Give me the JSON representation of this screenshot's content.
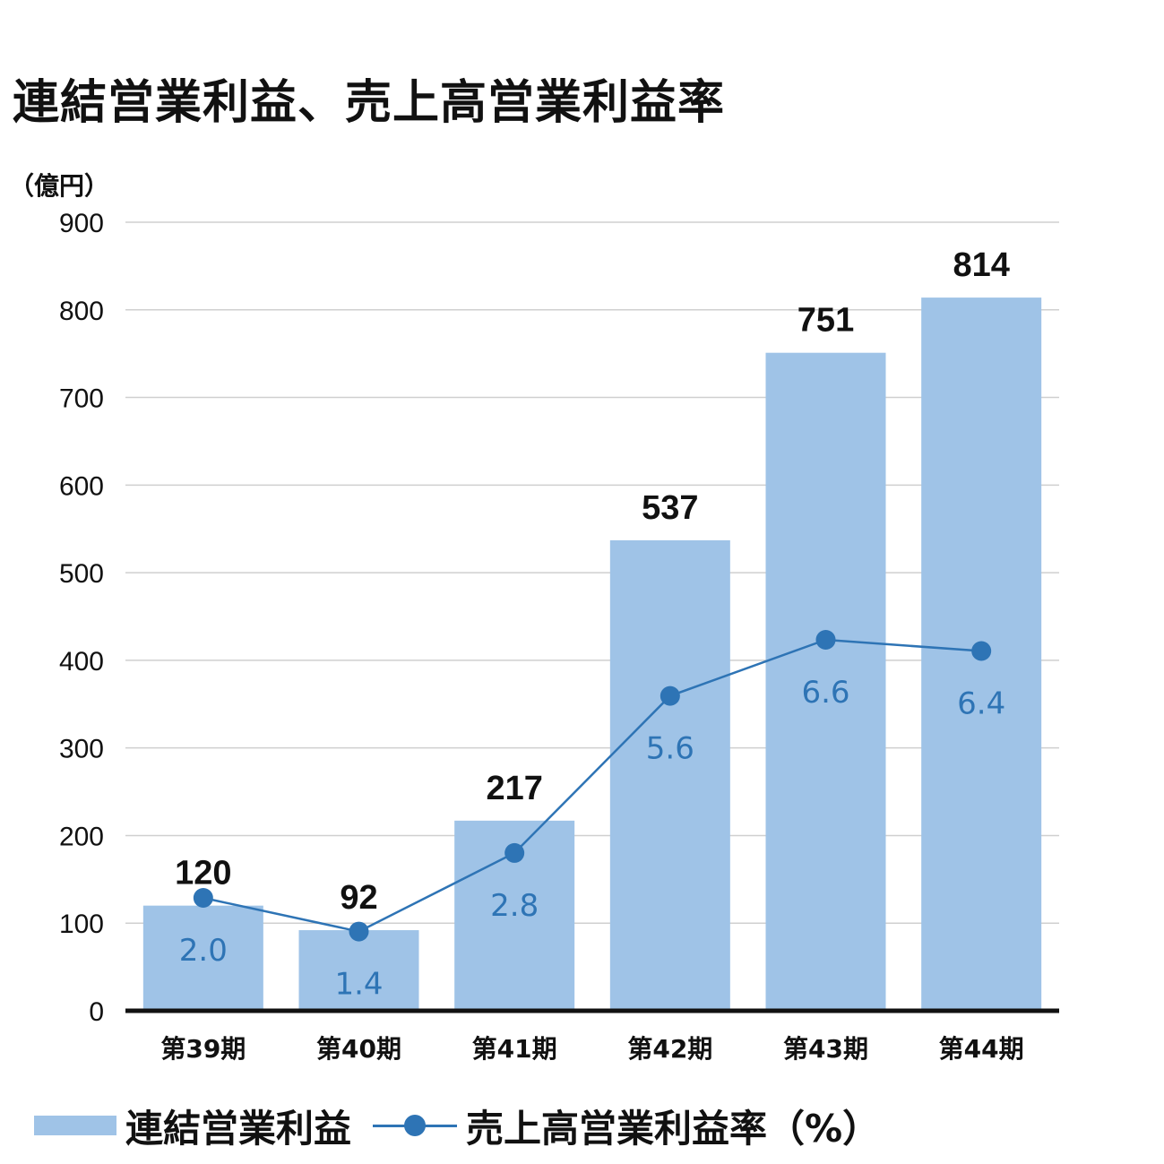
{
  "title": "連結営業利益、売上高営業利益率",
  "y_unit": "（億円）",
  "legend": {
    "bar_label": "連結営業利益",
    "line_label": "売上高営業利益率（%）"
  },
  "colors": {
    "bar": "#9fc3e7",
    "line": "#2e74b5",
    "rate_text": "#2e74b5"
  },
  "chart_data": {
    "type": "bar",
    "title": "連結営業利益、売上高営業利益率",
    "ylabel": "（億円）",
    "ylim": [
      0,
      900
    ],
    "yticks": [
      0,
      100,
      200,
      300,
      400,
      500,
      600,
      700,
      800,
      900
    ],
    "grid": true,
    "legend_position": "bottom",
    "categories": [
      "第39期",
      "第40期",
      "第41期",
      "第42期",
      "第43期",
      "第44期"
    ],
    "series": [
      {
        "name": "連結営業利益",
        "type": "bar",
        "values": [
          120,
          92,
          217,
          537,
          751,
          814
        ],
        "labels": [
          "120",
          "92",
          "217",
          "537",
          "751",
          "814"
        ]
      },
      {
        "name": "売上高営業利益率（%）",
        "type": "line",
        "values": [
          2.0,
          1.4,
          2.8,
          5.6,
          6.6,
          6.4
        ],
        "labels": [
          "2.0",
          "1.4",
          "2.8",
          "5.6",
          "6.6",
          "6.4"
        ]
      }
    ]
  }
}
